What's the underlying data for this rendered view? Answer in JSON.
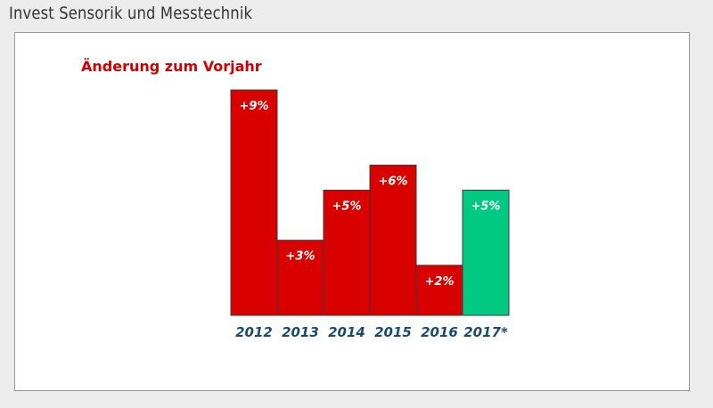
{
  "page": {
    "title": "Invest Sensorik und Messtechnik"
  },
  "colors": {
    "bar_past": "#d90000",
    "bar_forecast": "#00c984",
    "subtitle": "#cc0000",
    "tick_label": "#1c4a6e",
    "bar_border": "#3a3a3a"
  },
  "chart_data": {
    "type": "bar",
    "title": "Änderung zum Vorjahr",
    "xlabel": "",
    "ylabel": "",
    "ylim": [
      0,
      9
    ],
    "grid": false,
    "legend": "none",
    "categories": [
      "2012",
      "2013",
      "2014",
      "2015",
      "2016",
      "2017*"
    ],
    "values": [
      9,
      3,
      5,
      6,
      2,
      5
    ],
    "data_labels": [
      "+9%",
      "+3%",
      "+5%",
      "+6%",
      "+2%",
      "+5%"
    ],
    "forecast": [
      false,
      false,
      false,
      false,
      false,
      true
    ]
  }
}
